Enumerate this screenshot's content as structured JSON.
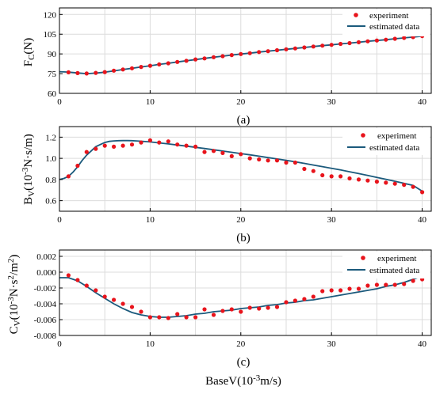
{
  "chart_data": [
    {
      "type": "line",
      "caption": "(a)",
      "ylabel_main": "F",
      "ylabel_sub": "C",
      "ylabel_tail": "(N)",
      "xlim": [
        0,
        41
      ],
      "ylim": [
        60,
        125
      ],
      "xticks": [
        0,
        10,
        20,
        30,
        40
      ],
      "yticks": [
        60,
        75,
        90,
        105,
        120
      ],
      "grid": true,
      "legend_position": "top-right",
      "legend": [
        "experiment",
        "estimated data"
      ],
      "colors": {
        "experiment": "#e8141c",
        "estimated": "#1b5a7c"
      },
      "series": [
        {
          "name": "experiment",
          "kind": "scatter",
          "x": [
            1,
            2,
            3,
            4,
            5,
            6,
            7,
            8,
            9,
            10,
            11,
            12,
            13,
            14,
            15,
            16,
            17,
            18,
            19,
            20,
            21,
            22,
            23,
            24,
            25,
            26,
            27,
            28,
            29,
            30,
            31,
            32,
            33,
            34,
            35,
            36,
            37,
            38,
            39,
            40
          ],
          "y": [
            76,
            75.4,
            75.1,
            75.6,
            76.2,
            77.3,
            78.2,
            79.1,
            80.1,
            81,
            82,
            82.9,
            83.9,
            84.8,
            85.8,
            86.6,
            87.5,
            88.3,
            89.1,
            89.9,
            90.6,
            91.4,
            92.1,
            92.8,
            93.5,
            94.2,
            94.9,
            95.6,
            96.3,
            96.9,
            97.6,
            98.2,
            98.9,
            99.6,
            100.2,
            100.8,
            101.5,
            102.2,
            102.8,
            103.6
          ]
        },
        {
          "name": "estimated data",
          "kind": "line",
          "x": [
            0,
            1,
            2,
            3,
            4,
            5,
            6,
            7,
            8,
            9,
            10,
            11,
            12,
            13,
            14,
            15,
            16,
            17,
            18,
            19,
            20,
            21,
            22,
            23,
            24,
            25,
            26,
            27,
            28,
            29,
            30,
            31,
            32,
            33,
            34,
            35,
            36,
            37,
            38,
            39,
            40
          ],
          "y": [
            76.5,
            76.2,
            75.5,
            75,
            75.4,
            76.1,
            77.1,
            78.1,
            79.1,
            80.1,
            81,
            82,
            82.9,
            83.9,
            84.8,
            85.7,
            86.6,
            87.5,
            88.3,
            89.1,
            89.9,
            90.6,
            91.4,
            92.1,
            92.8,
            93.5,
            94.2,
            94.9,
            95.6,
            96.3,
            96.9,
            97.6,
            98.2,
            98.9,
            99.6,
            100.2,
            100.8,
            101.5,
            102.2,
            102.8,
            103.5
          ]
        }
      ]
    },
    {
      "type": "line",
      "caption": "(b)",
      "ylabel_main": "B",
      "ylabel_sub": "V",
      "ylabel_mid": "(10",
      "ylabel_sup": "-3",
      "ylabel_tail": "N·s/m)",
      "xlim": [
        0,
        41
      ],
      "ylim": [
        0.5,
        1.3
      ],
      "xticks": [
        0,
        10,
        20,
        30,
        40
      ],
      "yticks": [
        0.6,
        0.8,
        1.0,
        1.2
      ],
      "ytick_labels": [
        "0.6",
        "0.8",
        "1.0",
        "1.2"
      ],
      "grid": true,
      "legend_position": "top-right",
      "legend": [
        "experiment",
        "estimated data"
      ],
      "colors": {
        "experiment": "#e8141c",
        "estimated": "#1b5a7c"
      },
      "series": [
        {
          "name": "experiment",
          "kind": "scatter",
          "x": [
            1,
            2,
            3,
            4,
            5,
            6,
            7,
            8,
            9,
            10,
            11,
            12,
            13,
            14,
            15,
            16,
            17,
            18,
            19,
            20,
            21,
            22,
            23,
            24,
            25,
            26,
            27,
            28,
            29,
            30,
            31,
            32,
            33,
            34,
            35,
            36,
            37,
            38,
            39,
            40
          ],
          "y": [
            0.83,
            0.93,
            1.06,
            1.09,
            1.12,
            1.11,
            1.12,
            1.13,
            1.15,
            1.17,
            1.15,
            1.16,
            1.13,
            1.12,
            1.11,
            1.06,
            1.07,
            1.05,
            1.02,
            1.04,
            1.0,
            0.99,
            0.98,
            0.98,
            0.96,
            0.96,
            0.9,
            0.88,
            0.84,
            0.83,
            0.83,
            0.81,
            0.8,
            0.79,
            0.78,
            0.77,
            0.76,
            0.75,
            0.73,
            0.68
          ]
        },
        {
          "name": "estimated data",
          "kind": "line",
          "x": [
            0,
            0.5,
            1,
            1.5,
            2,
            2.5,
            3,
            3.5,
            4,
            4.5,
            5,
            5.5,
            6,
            6.5,
            7,
            7.5,
            8,
            8.5,
            9,
            10,
            11,
            12,
            13,
            14,
            15,
            16,
            17,
            18,
            19,
            20,
            21,
            22,
            23,
            24,
            25,
            26,
            27,
            28,
            29,
            30,
            31,
            32,
            33,
            34,
            35,
            36,
            37,
            38,
            39,
            40
          ],
          "y": [
            0.8,
            0.81,
            0.83,
            0.87,
            0.92,
            0.98,
            1.03,
            1.07,
            1.11,
            1.13,
            1.15,
            1.16,
            1.165,
            1.167,
            1.168,
            1.168,
            1.167,
            1.165,
            1.162,
            1.155,
            1.146,
            1.136,
            1.126,
            1.115,
            1.104,
            1.093,
            1.081,
            1.069,
            1.057,
            1.045,
            1.033,
            1.02,
            1.007,
            0.994,
            0.981,
            0.967,
            0.952,
            0.937,
            0.922,
            0.906,
            0.89,
            0.873,
            0.856,
            0.838,
            0.82,
            0.802,
            0.783,
            0.764,
            0.744,
            0.69
          ]
        }
      ]
    },
    {
      "type": "line",
      "caption": "(c)",
      "ylabel_main": "C",
      "ylabel_sub": "V",
      "ylabel_mid": "(10",
      "ylabel_sup": "-3",
      "ylabel_tail": "N·s",
      "ylabel_sup2": "2",
      "ylabel_tail2": "/m",
      "ylabel_sup3": "2",
      "ylabel_end": ")",
      "xlabel_main": "BaseV(10",
      "xlabel_sup": "-3",
      "xlabel_tail": "m/s)",
      "xlim": [
        0,
        41
      ],
      "ylim": [
        -0.008,
        0.0028
      ],
      "xticks": [
        0,
        10,
        20,
        30,
        40
      ],
      "yticks": [
        -0.008,
        -0.006,
        -0.004,
        -0.002,
        0.0,
        0.002
      ],
      "ytick_labels": [
        "-0.008",
        "-0.006",
        "-0.004",
        "-0.002",
        "0.000",
        "0.002"
      ],
      "grid": true,
      "legend_position": "top-right",
      "legend": [
        "experiment",
        "estimated data"
      ],
      "colors": {
        "experiment": "#e8141c",
        "estimated": "#1b5a7c"
      },
      "series": [
        {
          "name": "experiment",
          "kind": "scatter",
          "x": [
            1,
            2,
            3,
            4,
            5,
            6,
            7,
            8,
            9,
            10,
            11,
            12,
            13,
            14,
            15,
            16,
            17,
            18,
            19,
            20,
            21,
            22,
            23,
            24,
            25,
            26,
            27,
            28,
            29,
            30,
            31,
            32,
            33,
            34,
            35,
            36,
            37,
            38,
            39,
            40
          ],
          "y": [
            -0.0004,
            -0.001,
            -0.0017,
            -0.0023,
            -0.0031,
            -0.0035,
            -0.004,
            -0.0044,
            -0.005,
            -0.0057,
            -0.0057,
            -0.0058,
            -0.0053,
            -0.0057,
            -0.0057,
            -0.0047,
            -0.0054,
            -0.0049,
            -0.0047,
            -0.005,
            -0.0045,
            -0.0046,
            -0.0045,
            -0.0044,
            -0.0038,
            -0.0036,
            -0.0034,
            -0.0031,
            -0.0024,
            -0.0023,
            -0.0023,
            -0.0021,
            -0.0021,
            -0.0017,
            -0.0016,
            -0.0016,
            -0.0016,
            -0.0015,
            -0.0011,
            -0.0009
          ]
        },
        {
          "name": "estimated data",
          "kind": "line",
          "x": [
            0,
            1,
            2,
            3,
            4,
            5,
            6,
            7,
            8,
            9,
            10,
            11,
            12,
            13,
            14,
            15,
            16,
            17,
            18,
            19,
            20,
            21,
            22,
            23,
            24,
            25,
            26,
            27,
            28,
            29,
            30,
            31,
            32,
            33,
            34,
            35,
            36,
            37,
            38,
            39,
            40
          ],
          "y": [
            -0.0007,
            -0.0007,
            -0.0011,
            -0.0018,
            -0.0026,
            -0.0033,
            -0.004,
            -0.0046,
            -0.0051,
            -0.0054,
            -0.0056,
            -0.0057,
            -0.0057,
            -0.0056,
            -0.0055,
            -0.0053,
            -0.0052,
            -0.005,
            -0.0049,
            -0.0048,
            -0.0046,
            -0.0045,
            -0.0044,
            -0.0042,
            -0.0041,
            -0.0039,
            -0.0038,
            -0.0036,
            -0.0035,
            -0.0033,
            -0.0031,
            -0.0029,
            -0.0027,
            -0.0025,
            -0.0023,
            -0.0021,
            -0.0018,
            -0.0016,
            -0.0013,
            -0.0009,
            -0.0005
          ]
        }
      ]
    }
  ]
}
